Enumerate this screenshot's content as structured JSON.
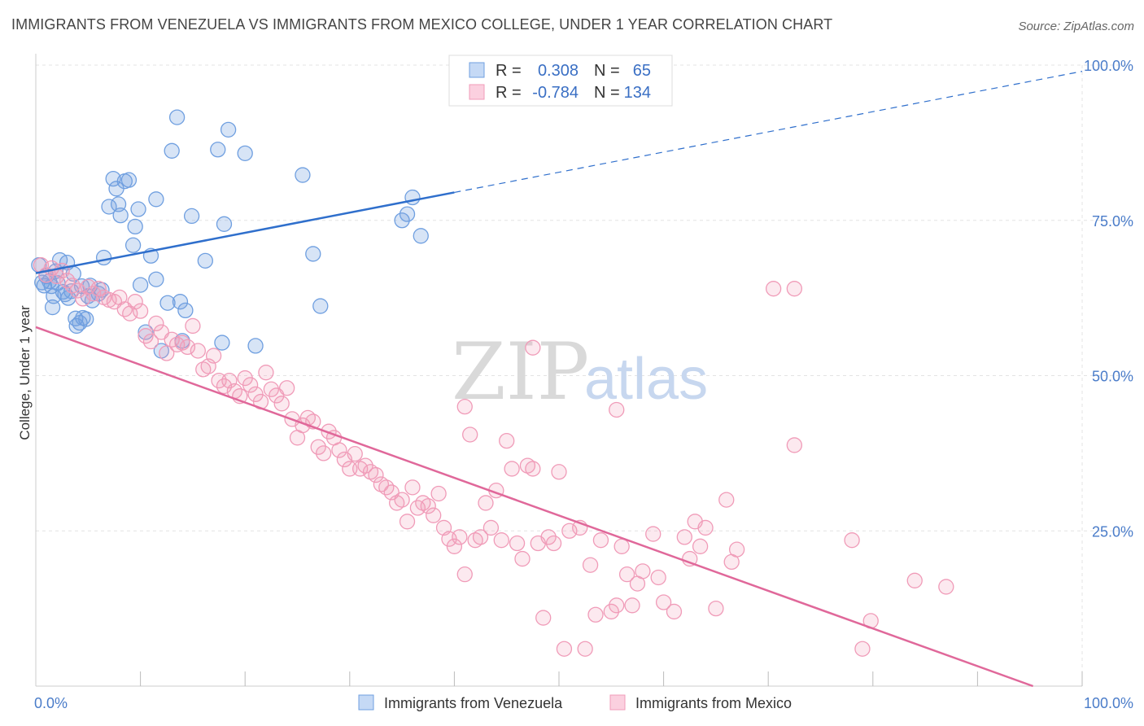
{
  "header": {
    "title": "IMMIGRANTS FROM VENEZUELA VS IMMIGRANTS FROM MEXICO COLLEGE, UNDER 1 YEAR CORRELATION CHART",
    "source": "Source: ZipAtlas.com"
  },
  "watermark": {
    "zip": "ZIP",
    "atlas": "atlas"
  },
  "legend": {
    "r_label": "R =",
    "n_label": "N =",
    "rows": [
      {
        "r": "0.308",
        "n": "65"
      },
      {
        "r": "-0.784",
        "n": "134"
      }
    ]
  },
  "chart_data": {
    "type": "scatter",
    "ylabel": "College, Under 1 year",
    "xlim": [
      0,
      100
    ],
    "ylim": [
      0,
      100
    ],
    "x_ticks": [
      "0.0%",
      "100.0%"
    ],
    "y_ticks": [
      {
        "value": 25,
        "label": "25.0%"
      },
      {
        "value": 50,
        "label": "50.0%"
      },
      {
        "value": 75,
        "label": "75.0%"
      },
      {
        "value": 100,
        "label": "100.0%"
      }
    ],
    "grid": true,
    "legend_position": "bottom",
    "colors": {
      "venezuela": "#6f9fe0",
      "mexico": "#f09bb8",
      "venezuela_line": "#2f6fcc",
      "mexico_line": "#e0689a"
    },
    "series": [
      {
        "name": "Immigrants from Venezuela",
        "color": "#6f9fe0",
        "trend": {
          "x": [
            0,
            40
          ],
          "y": [
            66.5,
            79.5
          ],
          "dashed_to": [
            100,
            99.0
          ]
        },
        "points": [
          [
            0.3,
            67.8
          ],
          [
            0.6,
            65.0
          ],
          [
            0.8,
            64.5
          ],
          [
            1.0,
            66.0
          ],
          [
            1.3,
            65.2
          ],
          [
            1.5,
            64.4
          ],
          [
            1.6,
            61.0
          ],
          [
            1.7,
            62.8
          ],
          [
            1.9,
            66.8
          ],
          [
            2.1,
            64.9
          ],
          [
            2.3,
            68.6
          ],
          [
            2.6,
            63.5
          ],
          [
            2.8,
            63.1
          ],
          [
            3.0,
            68.2
          ],
          [
            3.1,
            62.5
          ],
          [
            3.4,
            63.6
          ],
          [
            3.6,
            66.4
          ],
          [
            3.8,
            59.2
          ],
          [
            3.9,
            58.0
          ],
          [
            4.2,
            58.5
          ],
          [
            4.4,
            64.4
          ],
          [
            4.5,
            59.3
          ],
          [
            4.8,
            59.1
          ],
          [
            5.0,
            62.8
          ],
          [
            5.2,
            64.5
          ],
          [
            5.4,
            62.1
          ],
          [
            6.0,
            63.2
          ],
          [
            6.3,
            63.8
          ],
          [
            6.5,
            69.0
          ],
          [
            7.0,
            77.2
          ],
          [
            7.4,
            81.7
          ],
          [
            7.7,
            80.1
          ],
          [
            7.9,
            77.6
          ],
          [
            8.1,
            75.8
          ],
          [
            8.5,
            81.3
          ],
          [
            8.9,
            81.5
          ],
          [
            9.3,
            71.0
          ],
          [
            9.5,
            74.0
          ],
          [
            9.8,
            76.8
          ],
          [
            10.0,
            64.6
          ],
          [
            10.5,
            57.0
          ],
          [
            11.0,
            69.3
          ],
          [
            11.5,
            65.5
          ],
          [
            11.5,
            78.4
          ],
          [
            12.0,
            54.0
          ],
          [
            12.6,
            61.7
          ],
          [
            13.0,
            86.2
          ],
          [
            13.5,
            91.6
          ],
          [
            13.8,
            61.9
          ],
          [
            14.0,
            55.6
          ],
          [
            14.3,
            60.5
          ],
          [
            14.9,
            75.7
          ],
          [
            16.2,
            68.5
          ],
          [
            17.4,
            86.4
          ],
          [
            17.8,
            55.3
          ],
          [
            18.0,
            74.4
          ],
          [
            18.4,
            89.6
          ],
          [
            20.0,
            85.8
          ],
          [
            21.0,
            54.8
          ],
          [
            25.5,
            82.3
          ],
          [
            26.5,
            69.6
          ],
          [
            27.2,
            61.2
          ],
          [
            36.0,
            78.7
          ],
          [
            35.0,
            75.0
          ],
          [
            35.5,
            76.0
          ],
          [
            36.8,
            72.5
          ]
        ]
      },
      {
        "name": "Immigrants from Mexico",
        "color": "#f09bb8",
        "trend": {
          "x": [
            0,
            95.3
          ],
          "y": [
            57.8,
            0
          ]
        },
        "points": [
          [
            0.5,
            67.8
          ],
          [
            1.0,
            66.2
          ],
          [
            1.5,
            67.3
          ],
          [
            2.0,
            66.0
          ],
          [
            2.5,
            66.9
          ],
          [
            3.0,
            65.3
          ],
          [
            3.5,
            64.5
          ],
          [
            4.0,
            63.7
          ],
          [
            4.5,
            62.4
          ],
          [
            5.0,
            64.3
          ],
          [
            5.5,
            63.2
          ],
          [
            6.0,
            64.0
          ],
          [
            6.5,
            62.6
          ],
          [
            7.0,
            62.2
          ],
          [
            7.5,
            61.9
          ],
          [
            8.0,
            62.6
          ],
          [
            8.5,
            60.7
          ],
          [
            9.0,
            60.0
          ],
          [
            9.5,
            61.9
          ],
          [
            10.0,
            60.4
          ],
          [
            10.5,
            56.4
          ],
          [
            11.0,
            55.5
          ],
          [
            11.5,
            58.4
          ],
          [
            12.0,
            57.0
          ],
          [
            12.5,
            53.6
          ],
          [
            13.0,
            55.8
          ],
          [
            13.5,
            55.0
          ],
          [
            14.0,
            55.3
          ],
          [
            14.5,
            54.6
          ],
          [
            15.0,
            58.0
          ],
          [
            15.5,
            54.0
          ],
          [
            16.0,
            51.0
          ],
          [
            16.5,
            51.5
          ],
          [
            17.0,
            53.2
          ],
          [
            17.5,
            49.2
          ],
          [
            18.0,
            48.3
          ],
          [
            18.5,
            49.2
          ],
          [
            19.0,
            47.5
          ],
          [
            19.5,
            46.7
          ],
          [
            20.0,
            49.6
          ],
          [
            20.5,
            48.5
          ],
          [
            21.0,
            47.0
          ],
          [
            21.5,
            45.8
          ],
          [
            22.0,
            50.5
          ],
          [
            22.5,
            47.8
          ],
          [
            23.0,
            46.8
          ],
          [
            23.5,
            45.5
          ],
          [
            24.0,
            48.0
          ],
          [
            24.5,
            43.0
          ],
          [
            25.0,
            40.0
          ],
          [
            25.5,
            42.0
          ],
          [
            26.0,
            43.2
          ],
          [
            26.5,
            42.6
          ],
          [
            27.0,
            38.5
          ],
          [
            27.5,
            37.5
          ],
          [
            28.0,
            41.0
          ],
          [
            28.5,
            40.0
          ],
          [
            29.0,
            38.0
          ],
          [
            29.5,
            36.5
          ],
          [
            30.0,
            35.0
          ],
          [
            30.5,
            37.4
          ],
          [
            31.0,
            35.0
          ],
          [
            31.5,
            35.5
          ],
          [
            32.0,
            34.5
          ],
          [
            32.5,
            34.0
          ],
          [
            33.0,
            32.5
          ],
          [
            33.5,
            32.0
          ],
          [
            34.0,
            31.2
          ],
          [
            34.5,
            29.5
          ],
          [
            35.0,
            30.0
          ],
          [
            35.5,
            26.5
          ],
          [
            36.0,
            32.0
          ],
          [
            36.5,
            28.7
          ],
          [
            37.0,
            29.5
          ],
          [
            37.5,
            29.0
          ],
          [
            38.0,
            27.5
          ],
          [
            38.5,
            31.0
          ],
          [
            39.0,
            25.5
          ],
          [
            39.5,
            23.7
          ],
          [
            40.0,
            22.5
          ],
          [
            40.5,
            24.0
          ],
          [
            41.0,
            18.0
          ],
          [
            42.0,
            23.5
          ],
          [
            42.5,
            24.0
          ],
          [
            43.0,
            29.5
          ],
          [
            43.5,
            25.5
          ],
          [
            44.0,
            31.5
          ],
          [
            44.5,
            23.5
          ],
          [
            45.0,
            39.5
          ],
          [
            45.5,
            35.0
          ],
          [
            46.0,
            23.0
          ],
          [
            46.5,
            20.5
          ],
          [
            47.0,
            35.5
          ],
          [
            47.5,
            35.0
          ],
          [
            48.0,
            23.0
          ],
          [
            48.5,
            11.0
          ],
          [
            49.0,
            24.0
          ],
          [
            49.5,
            23.0
          ],
          [
            50.0,
            34.5
          ],
          [
            50.5,
            6.0
          ],
          [
            51.0,
            25.0
          ],
          [
            52.0,
            25.5
          ],
          [
            52.5,
            6.0
          ],
          [
            53.0,
            19.5
          ],
          [
            53.5,
            11.5
          ],
          [
            54.0,
            23.5
          ],
          [
            55.0,
            12.0
          ],
          [
            55.5,
            13.0
          ],
          [
            56.0,
            22.5
          ],
          [
            56.5,
            18.0
          ],
          [
            57.0,
            13.0
          ],
          [
            57.5,
            16.5
          ],
          [
            58.0,
            18.5
          ],
          [
            59.0,
            24.5
          ],
          [
            59.5,
            17.5
          ],
          [
            60.0,
            13.5
          ],
          [
            61.0,
            12.0
          ],
          [
            62.0,
            24.0
          ],
          [
            62.5,
            20.5
          ],
          [
            63.0,
            26.5
          ],
          [
            63.5,
            22.5
          ],
          [
            64.0,
            25.5
          ],
          [
            65.0,
            12.5
          ],
          [
            66.0,
            30.0
          ],
          [
            66.5,
            20.0
          ],
          [
            67.0,
            22.0
          ],
          [
            70.5,
            64.0
          ],
          [
            72.5,
            64.0
          ],
          [
            72.5,
            38.8
          ],
          [
            78.0,
            23.5
          ],
          [
            79.0,
            6.0
          ],
          [
            79.8,
            10.5
          ],
          [
            84.0,
            17.0
          ],
          [
            87.0,
            16.0
          ],
          [
            41.5,
            40.5
          ],
          [
            47.5,
            54.5
          ],
          [
            55.5,
            44.5
          ],
          [
            41.0,
            45.0
          ]
        ]
      }
    ]
  }
}
